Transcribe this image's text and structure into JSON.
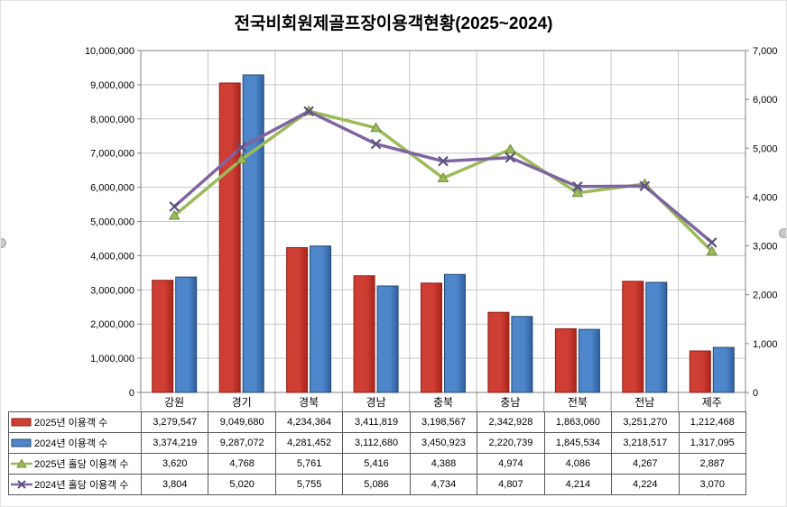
{
  "chart_data": {
    "type": "combo-bar-line",
    "title": "전국비회원제골프장이용객현황(2025~2024)",
    "categories": [
      "강원",
      "경기",
      "경북",
      "경남",
      "충북",
      "충남",
      "전북",
      "전남",
      "제주"
    ],
    "series": [
      {
        "name": "2025년 이용객 수",
        "chart": "bar",
        "axis": "left",
        "fill": "#cf3e33",
        "fill2": "#a8241c",
        "border": "#8d1f17",
        "values": [
          3279547,
          9049680,
          4234364,
          3411819,
          3198567,
          2342928,
          1863060,
          3251270,
          1212468
        ]
      },
      {
        "name": "2024년 이용객 수",
        "chart": "bar",
        "axis": "left",
        "fill": "#4d86ca",
        "fill2": "#2f5f9e",
        "border": "#25496f",
        "values": [
          3374219,
          9287072,
          4281452,
          3112680,
          3450923,
          2220739,
          1845534,
          3218517,
          1317095
        ]
      },
      {
        "name": "2025년 홀당 이용객 수",
        "chart": "line",
        "marker": "triangle",
        "axis": "right",
        "color": "#9bbb59",
        "marker_border": "#71893f",
        "values": [
          3620,
          4768,
          5761,
          5416,
          4388,
          4974,
          4086,
          4267,
          2887
        ]
      },
      {
        "name": "2024년 홀당 이용객 수",
        "chart": "line",
        "marker": "x",
        "axis": "right",
        "color": "#8064a2",
        "marker_color": "#5d527f",
        "values": [
          3804,
          5020,
          5755,
          5086,
          4734,
          4807,
          4214,
          4224,
          3070
        ]
      }
    ],
    "left_axis": {
      "min": 0,
      "max": 10000000,
      "step": 1000000
    },
    "right_axis": {
      "min": 0,
      "max": 7000,
      "step": 1000
    },
    "grid": true,
    "legend_position": "table-left"
  }
}
